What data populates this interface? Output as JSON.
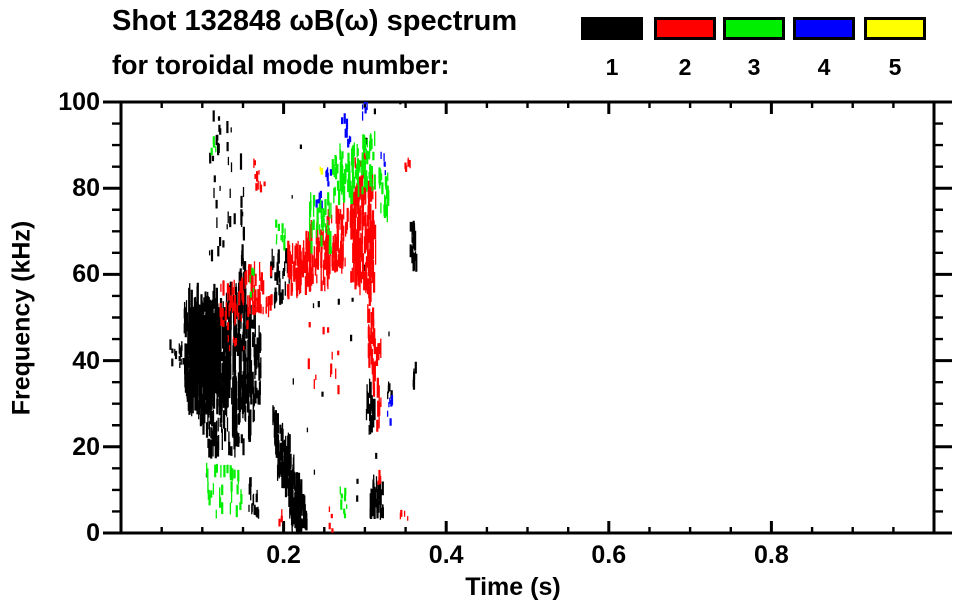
{
  "chart_data": {
    "type": "scatter",
    "marker": "vertical-dash",
    "title_line1": "Shot 132848 ωB(ω) spectrum",
    "title_line2": "for toroidal mode number:",
    "xlabel": "Time (s)",
    "ylabel": "Frequency (kHz)",
    "xlim": [
      0.0,
      1.0
    ],
    "ylim": [
      0,
      100
    ],
    "x_major_ticks": [
      0.2,
      0.4,
      0.6,
      0.8
    ],
    "x_tick_labels": [
      "0.2",
      "0.4",
      "0.6",
      "0.8"
    ],
    "x_minor_step": 0.05,
    "y_major_ticks": [
      0,
      20,
      40,
      60,
      80,
      100
    ],
    "y_tick_labels": [
      "0",
      "20",
      "40",
      "60",
      "80",
      "100"
    ],
    "y_minor_step": 5,
    "grid": false,
    "legend_position": "top-right",
    "legend": [
      {
        "mode": "1",
        "color": "#000000"
      },
      {
        "mode": "2",
        "color": "#ff0000"
      },
      {
        "mode": "3",
        "color": "#00ee00"
      },
      {
        "mode": "4",
        "color": "#0000ff"
      },
      {
        "mode": "5",
        "color": "#ffff00"
      }
    ],
    "cluster_format": [
      "t_start_s",
      "t_end_s",
      "f_min_kHz",
      "f_max_kHz",
      "num_marks",
      "dash_len_min_kHz",
      "dash_len_max_kHz"
    ],
    "series": [
      {
        "name": "n=1",
        "color": "#000000",
        "clusters": [
          [
            0.078,
            0.135,
            27,
            52,
            320,
            2,
            7
          ],
          [
            0.085,
            0.122,
            31,
            46,
            260,
            3,
            8
          ],
          [
            0.095,
            0.15,
            17,
            30,
            80,
            2,
            5
          ],
          [
            0.1385,
            0.1415,
            18,
            52,
            40,
            3,
            8
          ],
          [
            0.1445,
            0.1475,
            22,
            55,
            35,
            3,
            8
          ],
          [
            0.1475,
            0.1505,
            40,
            85,
            22,
            2,
            4
          ],
          [
            0.1505,
            0.1535,
            25,
            58,
            30,
            3,
            8
          ],
          [
            0.1565,
            0.1595,
            20,
            50,
            28,
            3,
            7
          ],
          [
            0.1625,
            0.1655,
            25,
            48,
            20,
            2,
            6
          ],
          [
            0.1685,
            0.1715,
            28,
            45,
            14,
            2,
            5
          ],
          [
            0.108,
            0.14,
            62,
            97,
            30,
            1,
            3
          ],
          [
            0.06,
            0.076,
            38,
            43,
            14,
            1,
            2.5
          ],
          [
            0.188,
            0.193,
            18,
            27,
            18,
            2,
            5
          ],
          [
            0.193,
            0.198,
            12,
            25,
            20,
            2,
            5
          ],
          [
            0.198,
            0.203,
            8,
            22,
            22,
            2,
            5
          ],
          [
            0.203,
            0.208,
            4,
            19,
            24,
            2,
            5
          ],
          [
            0.208,
            0.214,
            1,
            15,
            30,
            2,
            5
          ],
          [
            0.214,
            0.222,
            0,
            10,
            45,
            2,
            5
          ],
          [
            0.21,
            0.228,
            0,
            6,
            60,
            1.5,
            4
          ],
          [
            0.158,
            0.163,
            4,
            11,
            10,
            1.5,
            3
          ],
          [
            0.163,
            0.17,
            3,
            8,
            8,
            1.5,
            3
          ],
          [
            0.186,
            0.206,
            52,
            63,
            30,
            1.5,
            4
          ],
          [
            0.303,
            0.312,
            21,
            33,
            22,
            2,
            5
          ],
          [
            0.306,
            0.322,
            3,
            10,
            45,
            1.5,
            4
          ],
          [
            0.357,
            0.363,
            60,
            70,
            20,
            2,
            5
          ],
          [
            0.358,
            0.364,
            33,
            37,
            7,
            1.5,
            3
          ],
          [
            0.324,
            0.334,
            31,
            34,
            6,
            1,
            2
          ],
          [
            0.1,
            0.36,
            0,
            100,
            25,
            0.8,
            1.6
          ]
        ]
      },
      {
        "name": "n=2",
        "color": "#ff0000",
        "clusters": [
          [
            0.123,
            0.15,
            48,
            56,
            35,
            1.5,
            3.5
          ],
          [
            0.148,
            0.185,
            50,
            60,
            55,
            1.5,
            4
          ],
          [
            0.205,
            0.232,
            54,
            64,
            60,
            2,
            5
          ],
          [
            0.228,
            0.256,
            56,
            68,
            70,
            2,
            5
          ],
          [
            0.252,
            0.278,
            60,
            74,
            60,
            2,
            5
          ],
          [
            0.283,
            0.312,
            55,
            78,
            150,
            2.5,
            6
          ],
          [
            0.304,
            0.308,
            38,
            55,
            16,
            2,
            5
          ],
          [
            0.309,
            0.313,
            30,
            50,
            14,
            2,
            5
          ],
          [
            0.314,
            0.319,
            22,
            42,
            12,
            2,
            5
          ],
          [
            0.163,
            0.176,
            79,
            86,
            10,
            1,
            2.5
          ],
          [
            0.286,
            0.3,
            82,
            88,
            7,
            1,
            2.5
          ],
          [
            0.348,
            0.358,
            83,
            86,
            5,
            1,
            2
          ],
          [
            0.344,
            0.352,
            2,
            4,
            4,
            1,
            2
          ],
          [
            0.315,
            0.32,
            11,
            14,
            4,
            1,
            2
          ],
          [
            0.228,
            0.268,
            28,
            48,
            12,
            1,
            2.5
          ],
          [
            0.252,
            0.262,
            0,
            6,
            4,
            1,
            2
          ],
          [
            0.195,
            0.2,
            0,
            4,
            3,
            1,
            2
          ],
          [
            0.125,
            0.16,
            42,
            50,
            10,
            1,
            2
          ]
        ]
      },
      {
        "name": "n=3",
        "color": "#00ee00",
        "clusters": [
          [
            0.26,
            0.293,
            76,
            88,
            75,
            1.5,
            4
          ],
          [
            0.295,
            0.313,
            78,
            90,
            40,
            1.5,
            4
          ],
          [
            0.318,
            0.33,
            72,
            82,
            25,
            1.5,
            4
          ],
          [
            0.232,
            0.26,
            64,
            76,
            35,
            1.5,
            4
          ],
          [
            0.105,
            0.115,
            4,
            16,
            10,
            1.5,
            3
          ],
          [
            0.118,
            0.128,
            2,
            14,
            8,
            1.5,
            3
          ],
          [
            0.13,
            0.14,
            4,
            18,
            8,
            1.5,
            3
          ],
          [
            0.143,
            0.152,
            2,
            12,
            7,
            1.5,
            3
          ],
          [
            0.268,
            0.28,
            2,
            9,
            8,
            1,
            2.5
          ],
          [
            0.188,
            0.205,
            65,
            71,
            10,
            1,
            2.5
          ],
          [
            0.112,
            0.119,
            87,
            91,
            5,
            1,
            2
          ],
          [
            0.158,
            0.165,
            54,
            60,
            5,
            1,
            2
          ]
        ]
      },
      {
        "name": "n=4",
        "color": "#0000ff",
        "clusters": [
          [
            0.271,
            0.283,
            89,
            95,
            8,
            1,
            2.5
          ],
          [
            0.251,
            0.262,
            80,
            85,
            6,
            1,
            2.5
          ],
          [
            0.297,
            0.303,
            95,
            100,
            5,
            1,
            2.5
          ],
          [
            0.239,
            0.248,
            75,
            78,
            5,
            1,
            2
          ],
          [
            0.317,
            0.326,
            83,
            87,
            5,
            1,
            2
          ],
          [
            0.329,
            0.336,
            24,
            30,
            6,
            1,
            2.5
          ]
        ]
      },
      {
        "name": "n=5",
        "color": "#ffff00",
        "clusters": [
          [
            0.245,
            0.25,
            82,
            84,
            3,
            1,
            2
          ]
        ]
      }
    ]
  }
}
